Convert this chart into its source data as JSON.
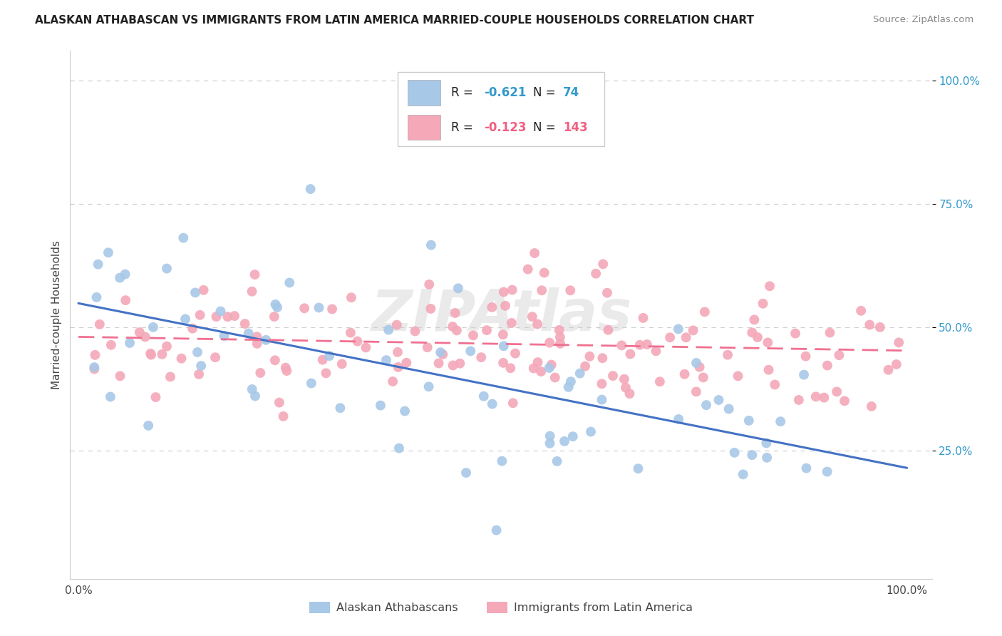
{
  "title": "ALASKAN ATHABASCAN VS IMMIGRANTS FROM LATIN AMERICA MARRIED-COUPLE HOUSEHOLDS CORRELATION CHART",
  "source": "Source: ZipAtlas.com",
  "ylabel": "Married-couple Households",
  "color_blue": "#a8c8e8",
  "color_pink": "#f4a8b8",
  "line_color_blue": "#4472c4",
  "line_color_pink": "#f07090",
  "background_color": "#ffffff",
  "grid_color": "#d0d0d0",
  "blue_intercept": 0.52,
  "blue_slope": -0.3,
  "pink_intercept": 0.485,
  "pink_slope": -0.04,
  "n_blue": 74,
  "n_pink": 143,
  "r_blue": "-0.621",
  "r_pink": "-0.123",
  "seed": 12345
}
